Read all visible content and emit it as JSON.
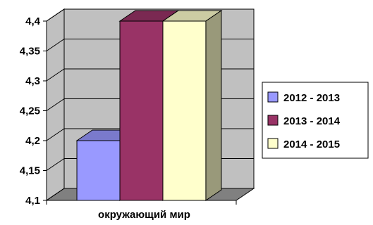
{
  "chart_data": {
    "type": "bar",
    "categories": [
      "окружающий мир"
    ],
    "series": [
      {
        "name": "2012 - 2013",
        "values": [
          4.2
        ],
        "color": "#9999ff"
      },
      {
        "name": "2013 - 2014",
        "values": [
          4.4
        ],
        "color": "#993366"
      },
      {
        "name": "2014 - 2015",
        "values": [
          4.4
        ],
        "color": "#ffffcc"
      }
    ],
    "yticks": [
      "4,1",
      "4,15",
      "4,2",
      "4,25",
      "4,3",
      "4,35",
      "4,4"
    ],
    "ylim": [
      4.1,
      4.4
    ],
    "grid": true,
    "legend_position": "right",
    "three_d": true,
    "wall_color": "#c0c0c0",
    "floor_color": "#808080"
  }
}
